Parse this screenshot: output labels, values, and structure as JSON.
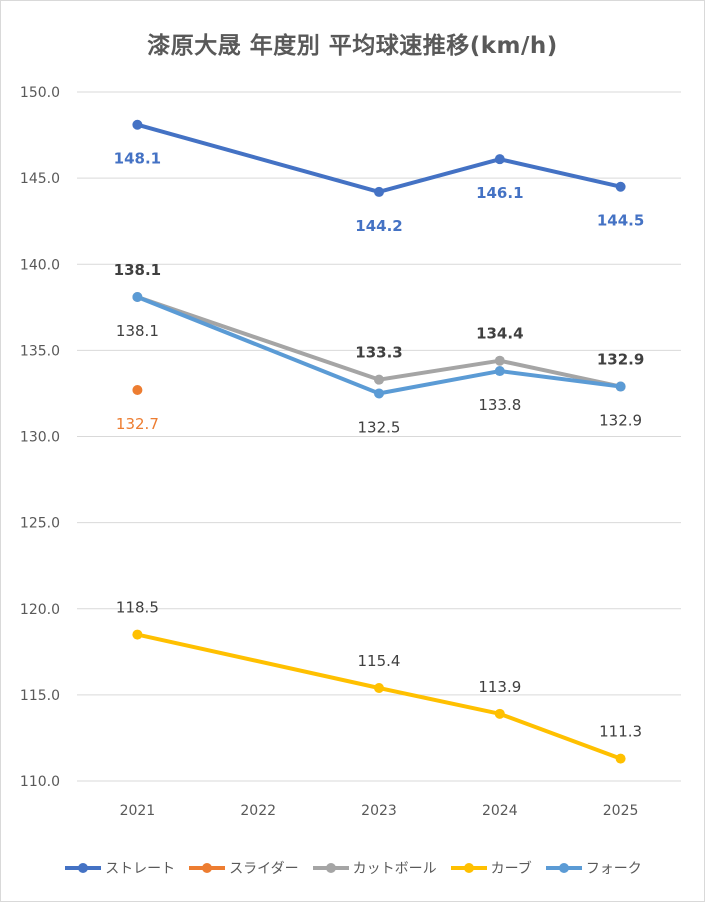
{
  "chart_data": {
    "type": "line",
    "title": "漆原大晟 年度別 平均球速推移(km/h)",
    "xlabel": "",
    "ylabel": "",
    "categories": [
      "2021",
      "2022",
      "2023",
      "2024",
      "2025"
    ],
    "ylim": [
      110.0,
      150.0
    ],
    "yticks": [
      "150.0",
      "145.0",
      "140.0",
      "135.0",
      "130.0",
      "125.0",
      "120.0",
      "115.0",
      "110.0"
    ],
    "grid": true,
    "legend_position": "bottom",
    "series": [
      {
        "name": "ストレート",
        "color": "#4472C4",
        "values": [
          148.1,
          null,
          144.2,
          146.1,
          144.5
        ],
        "labels": [
          "148.1",
          null,
          "144.2",
          "146.1",
          "144.5"
        ],
        "label_pos": [
          "below",
          null,
          "below",
          "below",
          "below"
        ],
        "label_bold": true
      },
      {
        "name": "スライダー",
        "color": "#ED7D31",
        "values": [
          132.7,
          null,
          null,
          null,
          null
        ],
        "labels": [
          "132.7",
          null,
          null,
          null,
          null
        ],
        "label_pos": [
          "below",
          null,
          null,
          null,
          null
        ],
        "label_bold": false
      },
      {
        "name": "カットボール",
        "color": "#A5A5A5",
        "values": [
          138.1,
          null,
          133.3,
          134.4,
          132.9
        ],
        "labels": [
          "138.1",
          null,
          "133.3",
          "134.4",
          "132.9"
        ],
        "label_pos": [
          "above",
          null,
          "above",
          "above",
          "above"
        ],
        "label_bold": true
      },
      {
        "name": "カーブ",
        "color": "#FFC000",
        "values": [
          118.5,
          null,
          115.4,
          113.9,
          111.3
        ],
        "labels": [
          "118.5",
          null,
          "115.4",
          "113.9",
          "111.3"
        ],
        "label_pos": [
          "above",
          null,
          "above",
          "above",
          "above"
        ],
        "label_bold": false
      },
      {
        "name": "フォーク",
        "color": "#5B9BD5",
        "values": [
          138.1,
          null,
          132.5,
          133.8,
          132.9
        ],
        "labels": [
          "138.1",
          null,
          "132.5",
          "133.8",
          "132.9"
        ],
        "label_pos": [
          "below",
          null,
          "below",
          "below",
          "below"
        ],
        "label_bold": false
      }
    ]
  }
}
